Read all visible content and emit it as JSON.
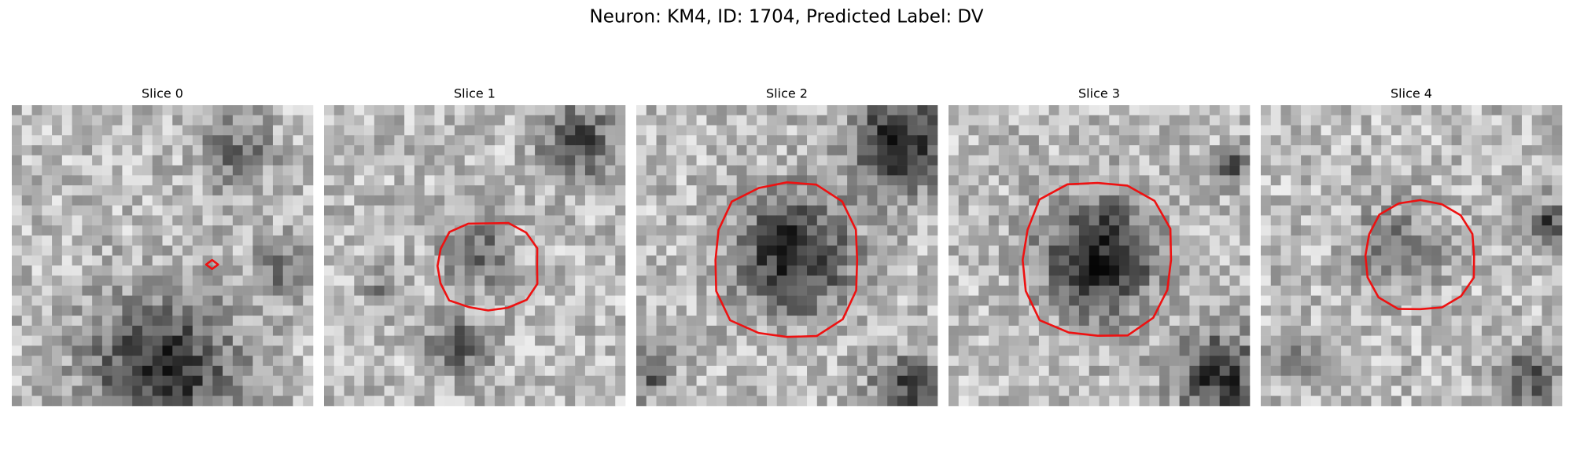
{
  "header": {
    "title": "Neuron: KM4, ID: 1704, Predicted Label: DV"
  },
  "panels": [
    {
      "title": "Slice 0"
    },
    {
      "title": "Slice 1"
    },
    {
      "title": "Slice 2"
    },
    {
      "title": "Slice 3"
    },
    {
      "title": "Slice 4"
    }
  ]
}
